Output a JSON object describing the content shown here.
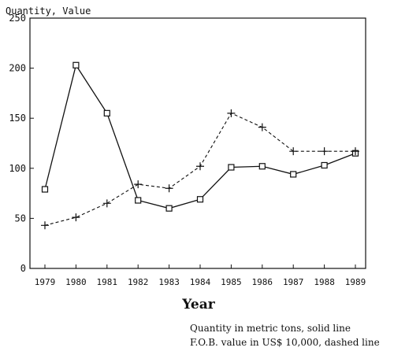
{
  "chart_data": {
    "type": "line",
    "ylabel": "Quantity, Value",
    "xlabel": "Year",
    "categories": [
      "1979",
      "1980",
      "1981",
      "1982",
      "1983",
      "1984",
      "1985",
      "1986",
      "1987",
      "1988",
      "1989"
    ],
    "ylim": [
      0,
      250
    ],
    "yticks": [
      0,
      50,
      100,
      150,
      200,
      250
    ],
    "grid": false,
    "series": [
      {
        "key": "quantity",
        "style": "solid",
        "marker": "square",
        "values": [
          79,
          203,
          155,
          68,
          60,
          69,
          101,
          102,
          94,
          103,
          115
        ]
      },
      {
        "key": "value",
        "style": "dashed",
        "marker": "plus",
        "values": [
          43,
          51,
          65,
          84,
          80,
          102,
          155,
          141,
          117,
          117,
          117
        ]
      }
    ],
    "notes": [
      "Quantity in metric tons, solid line",
      "F.O.B. value in US$ 10,000, dashed line"
    ]
  }
}
